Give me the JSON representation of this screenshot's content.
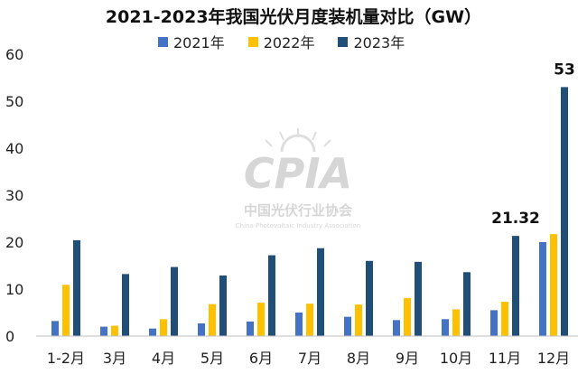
{
  "chart_data": {
    "type": "bar",
    "title": "2021-2023年我国光伏月度装机量对比（GW）",
    "categories": [
      "1-2月",
      "3月",
      "4月",
      "5月",
      "6月",
      "7月",
      "8月",
      "9月",
      "10月",
      "11月",
      "12月"
    ],
    "series": [
      {
        "name": "2021年",
        "color": "#4472c4",
        "values": [
          3.2,
          2.0,
          1.6,
          2.7,
          3.1,
          5.0,
          4.1,
          3.4,
          3.6,
          5.5,
          20.0
        ]
      },
      {
        "name": "2022年",
        "color": "#ffc000",
        "values": [
          10.9,
          2.2,
          3.6,
          6.8,
          7.1,
          6.9,
          6.7,
          8.1,
          5.7,
          7.3,
          21.7
        ]
      },
      {
        "name": "2023年",
        "color": "#1f4e79",
        "values": [
          20.4,
          13.2,
          14.7,
          12.9,
          17.2,
          18.7,
          16.0,
          15.8,
          13.6,
          21.32,
          53
        ]
      }
    ],
    "data_labels": [
      {
        "series": "2023年",
        "category": "11月",
        "text": "21.32"
      },
      {
        "series": "2023年",
        "category": "12月",
        "text": "53"
      }
    ],
    "yticks": [
      "0",
      "10",
      "20",
      "30",
      "40",
      "50",
      "60"
    ],
    "ylim": [
      0,
      60
    ],
    "xlabel": "",
    "ylabel": "",
    "grid": false,
    "legend_position": "top"
  },
  "watermark": {
    "logo_text": "CPIA",
    "org_cn": "中国光伏行业协会",
    "org_en": "China Photovoltaic Industry Association"
  }
}
